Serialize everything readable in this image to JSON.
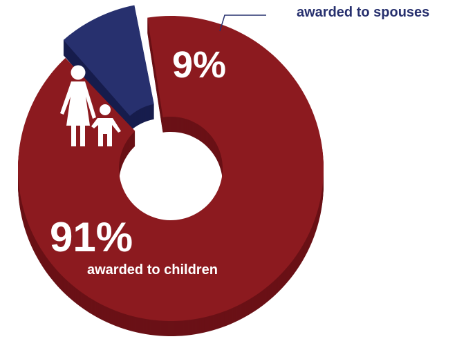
{
  "chart_data": {
    "type": "pie",
    "style": "3d-donut",
    "slices": [
      {
        "key": "children",
        "value": 91,
        "label": "91%",
        "caption": "awarded to children",
        "color": "#8c1a1f",
        "side_color": "#6a1116",
        "icon": "parent-and-child-icon"
      },
      {
        "key": "spouses",
        "value": 9,
        "label": "9%",
        "caption": "awarded to spouses",
        "color": "#27306e",
        "side_color": "#171d4d"
      }
    ],
    "legend": "none",
    "grid": false
  },
  "colors": {
    "label_text": "#ffffff",
    "spouse_caption_text": "#27306e",
    "leader_line": "#27306e",
    "background": "#ffffff"
  }
}
